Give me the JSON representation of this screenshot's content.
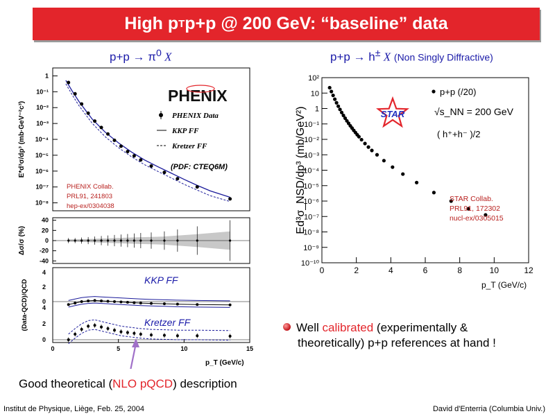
{
  "title": {
    "main": "High p",
    "sub": "T",
    "rest": " p+p @ 200 GeV: “baseline” data"
  },
  "left_heading": {
    "pre": "p+p → π",
    "sup": "0",
    "post": " X"
  },
  "right_heading": {
    "pre": "p+p → h",
    "sup": "±",
    "post": " X",
    "paren": "(Non Singly Diffractive)",
    "close": ")",
    "open": "("
  },
  "bullet": {
    "pre": "Well ",
    "highlight": "calibrated",
    "post": " (experimentally &",
    "line2": "theoretically) p+p references at hand !"
  },
  "caption": {
    "pre": "Good theoretical (",
    "highlight": "NLO pQCD",
    "post": ") description"
  },
  "footer": {
    "left": "Institut de Physique, Liège, Feb. 25, 2004",
    "right": "David d'Enterria (Columbia Univ.)"
  },
  "colors": {
    "title_bg": "#e3252b",
    "heading": "#1a1aa8",
    "accent_red": "#e3252b",
    "arrow": "#a070c8"
  },
  "chart_data": [
    {
      "type": "scatter",
      "panel": "pi0 invariant cross section",
      "logo": "PHENIX",
      "ylabel": "E*d³σ/dp³ (mb·GeV⁻²c³)",
      "ylim_log10": [
        -8.5,
        0.5
      ],
      "xlim": [
        0,
        15
      ],
      "yticks": [
        {
          "v": 0,
          "t": "1"
        },
        {
          "v": -1,
          "t": "10⁻¹"
        },
        {
          "v": -2,
          "t": "10⁻²"
        },
        {
          "v": -3,
          "t": "10⁻³"
        },
        {
          "v": -4,
          "t": "10⁻⁴"
        },
        {
          "v": -5,
          "t": "10⁻⁵"
        },
        {
          "v": -6,
          "t": "10⁻⁶"
        },
        {
          "v": -7,
          "t": "10⁻⁷"
        },
        {
          "v": -8,
          "t": "10⁻⁸"
        }
      ],
      "legend": [
        "PHENIX Data",
        "KKP FF",
        "Kretzer FF"
      ],
      "pdf_note": "(PDF: CTEQ6M)",
      "reference": [
        "PHENIX Collab.",
        "PRL91, 241803",
        "hep-ex/0304038"
      ],
      "series": [
        {
          "name": "PHENIX Data",
          "x": [
            1.2,
            1.7,
            2.2,
            2.7,
            3.2,
            3.7,
            4.2,
            4.7,
            5.2,
            5.7,
            6.2,
            6.7,
            7.5,
            8.5,
            9.5,
            11.0,
            13.5
          ],
          "log10y": [
            -0.42,
            -1.13,
            -1.77,
            -2.35,
            -2.85,
            -3.25,
            -3.66,
            -4.06,
            -4.43,
            -4.77,
            -5.04,
            -5.3,
            -5.68,
            -6.08,
            -6.48,
            -7.0,
            -7.75
          ]
        },
        {
          "name": "KKP FF",
          "x": [
            1.0,
            1.5,
            2,
            3,
            4,
            5,
            6,
            7,
            8,
            9,
            10,
            11,
            12,
            13.5
          ],
          "log10y": [
            -0.28,
            -0.98,
            -1.62,
            -2.72,
            -3.55,
            -4.22,
            -4.8,
            -5.3,
            -5.72,
            -6.12,
            -6.52,
            -6.9,
            -7.25,
            -7.65
          ]
        },
        {
          "name": "Kretzer FF",
          "x": [
            1.0,
            1.5,
            2,
            3,
            4,
            5,
            6,
            7,
            8,
            9,
            10,
            11,
            12,
            13.5
          ],
          "log10y": [
            -0.5,
            -1.22,
            -1.88,
            -2.98,
            -3.84,
            -4.52,
            -5.1,
            -5.6,
            -6.02,
            -6.42,
            -6.83,
            -7.2,
            -7.55,
            -7.92
          ]
        }
      ]
    },
    {
      "type": "scatter",
      "panel": "relative systematic error",
      "ylabel": "Δσ/σ (%)",
      "ylim": [
        -45,
        45
      ],
      "yticks": [
        40,
        20,
        0,
        -20,
        -40
      ],
      "series": [
        {
          "name": "points",
          "x": [
            1.2,
            1.7,
            2.2,
            2.7,
            3.2,
            3.7,
            4.2,
            4.7,
            5.2,
            5.7,
            6.2,
            6.7,
            7.5,
            8.5,
            9.5,
            11.0,
            13.5
          ],
          "y": [
            0,
            0,
            0,
            0,
            0,
            0,
            0,
            0,
            0,
            0,
            0,
            0,
            0,
            0,
            0,
            0,
            0
          ],
          "err": [
            5,
            5,
            6,
            7,
            8,
            9,
            10,
            11,
            12,
            13,
            14,
            15,
            16,
            18,
            22,
            28,
            40
          ]
        }
      ]
    },
    {
      "type": "line",
      "panel": "(Data-QCD)/QCD",
      "ylabel": "(Data-QCD)/QCD",
      "xlabel": "p_T (GeV/c)",
      "xticks": [
        0,
        5,
        10,
        15
      ],
      "labels": [
        "KKP FF",
        "Kretzer FF"
      ],
      "upper_ticks": [
        4,
        2,
        0
      ],
      "lower_ticks": [
        4,
        2,
        0
      ],
      "series": [
        {
          "name": "KKP FF",
          "x": [
            1.2,
            1.7,
            2.2,
            2.7,
            3.2,
            3.7,
            4.2,
            4.7,
            5.2,
            5.7,
            6.2,
            6.7,
            7.5,
            8.5,
            9.5,
            11.0,
            13.5
          ],
          "y": [
            -0.4,
            -0.2,
            0.0,
            0.1,
            0.15,
            0.1,
            0.05,
            0.0,
            -0.05,
            -0.1,
            -0.15,
            -0.2,
            -0.25,
            -0.3,
            -0.35,
            -0.4,
            -0.45
          ]
        },
        {
          "name": "Kretzer FF",
          "x": [
            1.2,
            1.7,
            2.2,
            2.7,
            3.2,
            3.7,
            4.2,
            4.7,
            5.2,
            5.7,
            6.2,
            6.7,
            7.5,
            8.5,
            9.5,
            11.0,
            13.5
          ],
          "y": [
            0.0,
            0.7,
            1.3,
            1.7,
            1.8,
            1.6,
            1.4,
            1.2,
            1.0,
            0.9,
            0.8,
            0.7,
            0.6,
            0.55,
            0.5,
            0.5,
            0.45
          ]
        }
      ]
    },
    {
      "type": "scatter",
      "panel": "charged hadron NSD cross section",
      "logo": "STAR",
      "xlabel": "p_T (GeV/c)",
      "ylabel": "Ed³σ_NSD/dp³ (mb/GeV²)",
      "xlim": [
        0,
        12
      ],
      "xticks": [
        0,
        2,
        4,
        6,
        8,
        10,
        12
      ],
      "ylim_log10": [
        -10,
        2
      ],
      "yticks": [
        {
          "v": 2,
          "t": "10²"
        },
        {
          "v": 1,
          "t": "10"
        },
        {
          "v": 0,
          "t": "1"
        },
        {
          "v": -1,
          "t": "10⁻¹"
        },
        {
          "v": -2,
          "t": "10⁻²"
        },
        {
          "v": -3,
          "t": "10⁻³"
        },
        {
          "v": -4,
          "t": "10⁻⁴"
        },
        {
          "v": -5,
          "t": "10⁻⁵"
        },
        {
          "v": -6,
          "t": "10⁻⁶"
        },
        {
          "v": -7,
          "t": "10⁻⁷"
        },
        {
          "v": -8,
          "t": "10⁻⁸"
        },
        {
          "v": -9,
          "t": "10⁻⁹"
        },
        {
          "v": -10,
          "t": "10⁻¹⁰"
        }
      ],
      "legend": {
        "series": "p+p (/20)",
        "energy": "√s_NN = 200 GeV",
        "charge": "( h⁺+h⁻ )/2"
      },
      "reference": [
        "STAR Collab.",
        "PRL91, 172302",
        "nucl-ex/0305015"
      ],
      "series": [
        {
          "name": "p+p (/20)",
          "x": [
            0.45,
            0.55,
            0.65,
            0.75,
            0.85,
            0.95,
            1.05,
            1.15,
            1.25,
            1.35,
            1.45,
            1.55,
            1.65,
            1.75,
            1.85,
            1.95,
            2.05,
            2.15,
            2.3,
            2.5,
            2.7,
            2.9,
            3.2,
            3.6,
            4.1,
            4.7,
            5.5,
            6.5,
            7.5,
            8.5,
            9.5
          ],
          "log10y": [
            1.35,
            1.1,
            0.85,
            0.6,
            0.37,
            0.15,
            -0.06,
            -0.26,
            -0.45,
            -0.63,
            -0.8,
            -0.96,
            -1.12,
            -1.27,
            -1.42,
            -1.56,
            -1.7,
            -1.83,
            -2.02,
            -2.27,
            -2.5,
            -2.72,
            -3.0,
            -3.38,
            -3.8,
            -4.25,
            -4.8,
            -5.45,
            -6.0,
            -6.5,
            -6.9
          ]
        }
      ]
    }
  ]
}
